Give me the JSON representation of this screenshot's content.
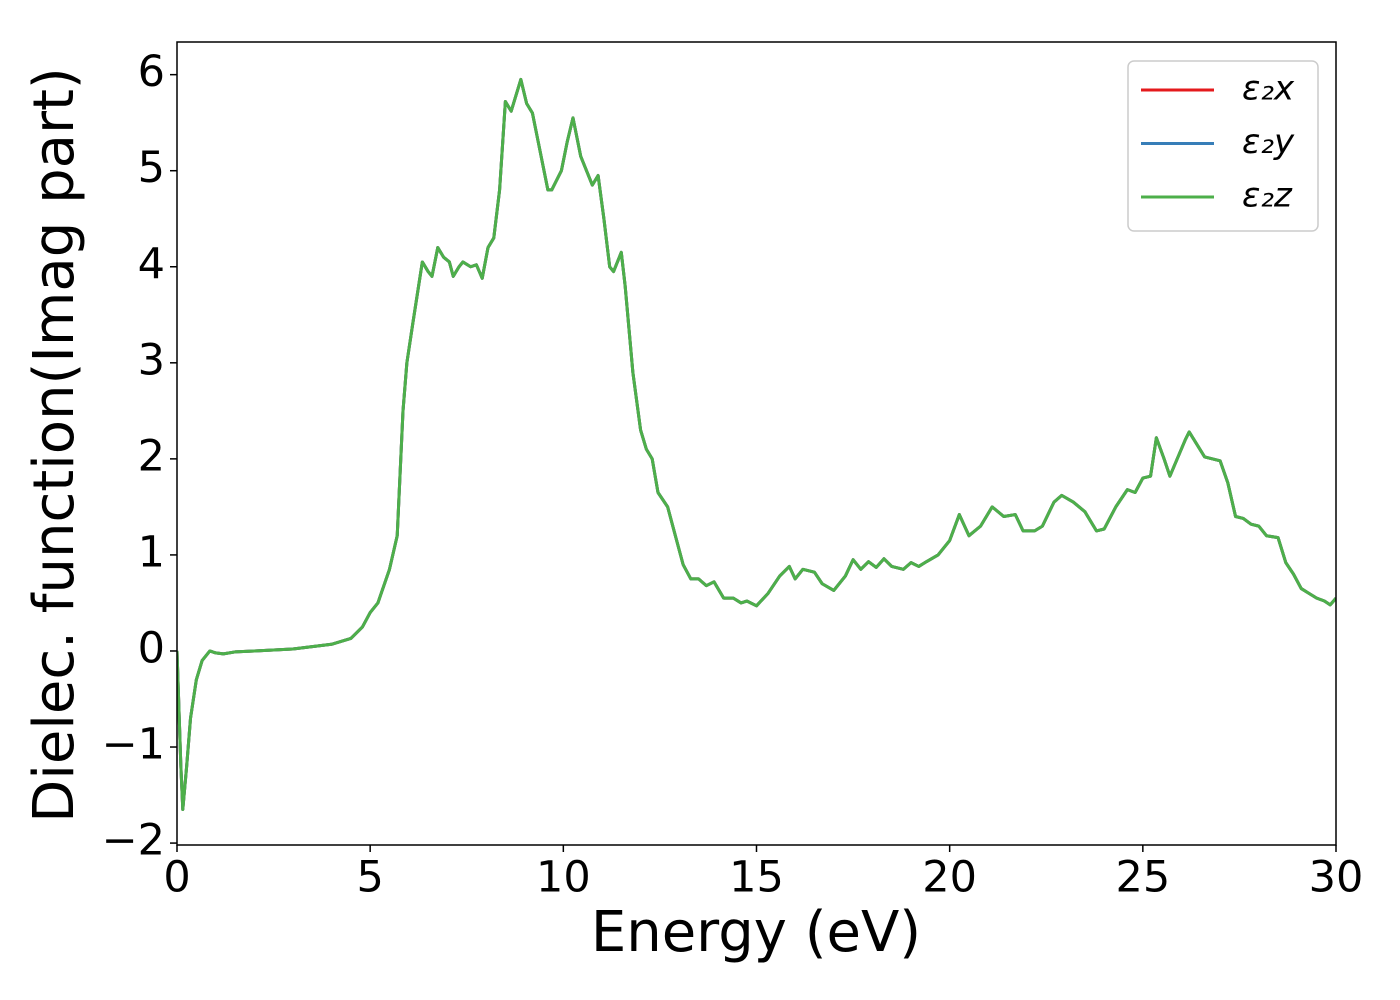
{
  "chart_data": {
    "type": "line",
    "xlabel": "Energy (eV)",
    "ylabel": "Dielec. function(Imag part)",
    "xlim": [
      0,
      30
    ],
    "ylim": [
      -2.02,
      6.34
    ],
    "xticks": [
      0,
      5,
      10,
      15,
      20,
      25,
      30
    ],
    "yticks": [
      {
        "value": -2,
        "label": "−2"
      },
      {
        "value": -1,
        "label": "−1"
      },
      0,
      1,
      2,
      3,
      4,
      5,
      6
    ],
    "legend": "upper right",
    "x": [
      0,
      0.1,
      0.15,
      0.25,
      0.35,
      0.5,
      0.65,
      0.85,
      1,
      1.2,
      1.5,
      2,
      3,
      4,
      4.5,
      4.8,
      5,
      5.2,
      5.5,
      5.7,
      5.85,
      5.95,
      6.1,
      6.35,
      6.5,
      6.6,
      6.75,
      6.9,
      7.05,
      7.15,
      7.3,
      7.4,
      7.6,
      7.75,
      7.9,
      8.05,
      8.2,
      8.35,
      8.5,
      8.65,
      8.9,
      9.05,
      9.2,
      9.35,
      9.6,
      9.7,
      9.95,
      10.1,
      10.25,
      10.45,
      10.6,
      10.75,
      10.9,
      11.05,
      11.2,
      11.3,
      11.5,
      11.6,
      11.8,
      12,
      12.15,
      12.3,
      12.45,
      12.7,
      12.9,
      13.1,
      13.3,
      13.5,
      13.7,
      13.9,
      14.15,
      14.4,
      14.6,
      14.75,
      15,
      15.3,
      15.6,
      15.85,
      16,
      16.2,
      16.5,
      16.7,
      17,
      17.3,
      17.5,
      17.7,
      17.9,
      18.1,
      18.3,
      18.5,
      18.8,
      19,
      19.2,
      19.4,
      19.7,
      20,
      20.25,
      20.5,
      20.8,
      21.1,
      21.4,
      21.7,
      21.9,
      22.2,
      22.4,
      22.7,
      22.9,
      23.2,
      23.5,
      23.8,
      24,
      24.3,
      24.6,
      24.8,
      25,
      25.2,
      25.35,
      25.55,
      25.7,
      26.1,
      26.2,
      26.6,
      27,
      27.2,
      27.4,
      27.6,
      27.8,
      28,
      28.2,
      28.5,
      28.7,
      28.9,
      29.1,
      29.3,
      29.5,
      29.7,
      29.85,
      30
    ],
    "series": [
      {
        "name": "ε₂x",
        "color": "#e41a1c",
        "values": [
          0,
          -1.2,
          -1.65,
          -1.2,
          -0.7,
          -0.3,
          -0.1,
          0,
          -0.02,
          -0.03,
          -0.01,
          0,
          0.02,
          0.07,
          0.13,
          0.25,
          0.4,
          0.5,
          0.85,
          1.2,
          2.5,
          3,
          3.4,
          4.05,
          3.95,
          3.9,
          4.2,
          4.1,
          4.05,
          3.9,
          4,
          4.05,
          4,
          4.02,
          3.88,
          4.2,
          4.3,
          4.8,
          5.72,
          5.62,
          5.95,
          5.7,
          5.6,
          5.3,
          4.8,
          4.8,
          5,
          5.3,
          5.55,
          5.15,
          5,
          4.85,
          4.95,
          4.5,
          4,
          3.95,
          4.15,
          3.8,
          2.9,
          2.3,
          2.1,
          2,
          1.65,
          1.5,
          1.2,
          0.9,
          0.75,
          0.75,
          0.68,
          0.72,
          0.55,
          0.55,
          0.5,
          0.52,
          0.47,
          0.6,
          0.78,
          0.88,
          0.75,
          0.85,
          0.82,
          0.7,
          0.63,
          0.78,
          0.95,
          0.85,
          0.93,
          0.87,
          0.96,
          0.88,
          0.85,
          0.92,
          0.88,
          0.93,
          1,
          1.15,
          1.42,
          1.2,
          1.3,
          1.5,
          1.4,
          1.42,
          1.25,
          1.25,
          1.3,
          1.55,
          1.62,
          1.55,
          1.45,
          1.25,
          1.27,
          1.5,
          1.68,
          1.65,
          1.8,
          1.82,
          2.22,
          2,
          1.82,
          2.2,
          2.28,
          2.02,
          1.98,
          1.75,
          1.4,
          1.38,
          1.32,
          1.3,
          1.2,
          1.18,
          0.92,
          0.8,
          0.65,
          0.6,
          0.55,
          0.52,
          0.48,
          0.55
        ]
      },
      {
        "name": "ε₂y",
        "color": "#377eb8",
        "values": [
          0,
          -1.2,
          -1.65,
          -1.2,
          -0.7,
          -0.3,
          -0.1,
          0,
          -0.02,
          -0.03,
          -0.01,
          0,
          0.02,
          0.07,
          0.13,
          0.25,
          0.4,
          0.5,
          0.85,
          1.2,
          2.5,
          3,
          3.4,
          4.05,
          3.95,
          3.9,
          4.2,
          4.1,
          4.05,
          3.9,
          4,
          4.05,
          4,
          4.02,
          3.88,
          4.2,
          4.3,
          4.8,
          5.72,
          5.62,
          5.95,
          5.7,
          5.6,
          5.3,
          4.8,
          4.8,
          5,
          5.3,
          5.55,
          5.15,
          5,
          4.85,
          4.95,
          4.5,
          4,
          3.95,
          4.15,
          3.8,
          2.9,
          2.3,
          2.1,
          2,
          1.65,
          1.5,
          1.2,
          0.9,
          0.75,
          0.75,
          0.68,
          0.72,
          0.55,
          0.55,
          0.5,
          0.52,
          0.47,
          0.6,
          0.78,
          0.88,
          0.75,
          0.85,
          0.82,
          0.7,
          0.63,
          0.78,
          0.95,
          0.85,
          0.93,
          0.87,
          0.96,
          0.88,
          0.85,
          0.92,
          0.88,
          0.93,
          1,
          1.15,
          1.42,
          1.2,
          1.3,
          1.5,
          1.4,
          1.42,
          1.25,
          1.25,
          1.3,
          1.55,
          1.62,
          1.55,
          1.45,
          1.25,
          1.27,
          1.5,
          1.68,
          1.65,
          1.8,
          1.82,
          2.22,
          2,
          1.82,
          2.2,
          2.28,
          2.02,
          1.98,
          1.75,
          1.4,
          1.38,
          1.32,
          1.3,
          1.2,
          1.18,
          0.92,
          0.8,
          0.65,
          0.6,
          0.55,
          0.52,
          0.48,
          0.55
        ]
      },
      {
        "name": "ε₂z",
        "color": "#4daf4a",
        "values": [
          0,
          -1.2,
          -1.65,
          -1.2,
          -0.7,
          -0.3,
          -0.1,
          0,
          -0.02,
          -0.03,
          -0.01,
          0,
          0.02,
          0.07,
          0.13,
          0.25,
          0.4,
          0.5,
          0.85,
          1.2,
          2.5,
          3,
          3.4,
          4.05,
          3.95,
          3.9,
          4.2,
          4.1,
          4.05,
          3.9,
          4,
          4.05,
          4,
          4.02,
          3.88,
          4.2,
          4.3,
          4.8,
          5.72,
          5.62,
          5.95,
          5.7,
          5.6,
          5.3,
          4.8,
          4.8,
          5,
          5.3,
          5.55,
          5.15,
          5,
          4.85,
          4.95,
          4.5,
          4,
          3.95,
          4.15,
          3.8,
          2.9,
          2.3,
          2.1,
          2,
          1.65,
          1.5,
          1.2,
          0.9,
          0.75,
          0.75,
          0.68,
          0.72,
          0.55,
          0.55,
          0.5,
          0.52,
          0.47,
          0.6,
          0.78,
          0.88,
          0.75,
          0.85,
          0.82,
          0.7,
          0.63,
          0.78,
          0.95,
          0.85,
          0.93,
          0.87,
          0.96,
          0.88,
          0.85,
          0.92,
          0.88,
          0.93,
          1,
          1.15,
          1.42,
          1.2,
          1.3,
          1.5,
          1.4,
          1.42,
          1.25,
          1.25,
          1.3,
          1.55,
          1.62,
          1.55,
          1.45,
          1.25,
          1.27,
          1.5,
          1.68,
          1.65,
          1.8,
          1.82,
          2.22,
          2,
          1.82,
          2.2,
          2.28,
          2.02,
          1.98,
          1.75,
          1.4,
          1.38,
          1.32,
          1.3,
          1.2,
          1.18,
          0.92,
          0.8,
          0.65,
          0.6,
          0.55,
          0.52,
          0.48,
          0.55
        ]
      }
    ]
  }
}
